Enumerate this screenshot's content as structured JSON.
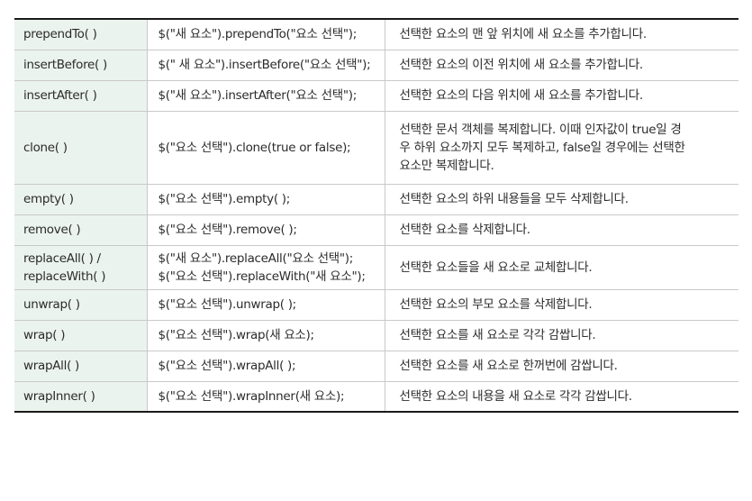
{
  "rows": [
    {
      "method": [
        "prependTo( )"
      ],
      "syntax": [
        "$(\"새 요소\").prependTo(\"요소 선택\");"
      ],
      "desc": [
        "선택한 요소의 맨 앞 위치에 새 요소를 추가합니다."
      ]
    },
    {
      "method": [
        "insertBefore( )"
      ],
      "syntax": [
        "$(\" 새 요소\").insertBefore(\"요소 선택\");"
      ],
      "desc": [
        "선택한 요소의 이전 위치에 새 요소를 추가합니다."
      ]
    },
    {
      "method": [
        "insertAfter( )"
      ],
      "syntax": [
        "$(\"새 요소\").insertAfter(\"요소 선택\");"
      ],
      "desc": [
        "선택한 요소의 다음 위치에 새 요소를 추가합니다."
      ]
    },
    {
      "method": [
        "clone( )"
      ],
      "syntax": [
        "$(\"요소 선택\").clone(true or false);"
      ],
      "desc": [
        "선택한 문서 객체를 복제합니다. 이때 인자값이 true일 경",
        "우 하위 요소까지 모두 복제하고, false일 경우에는 선택한",
        "요소만 복제합니다."
      ]
    },
    {
      "method": [
        "empty( )"
      ],
      "syntax": [
        "$(\"요소 선택\").empty( );"
      ],
      "desc": [
        "선택한 요소의 하위 내용들을 모두 삭제합니다."
      ]
    },
    {
      "method": [
        "remove( )"
      ],
      "syntax": [
        "$(\"요소 선택\").remove( );"
      ],
      "desc": [
        "선택한 요소를 삭제합니다."
      ]
    },
    {
      "method": [
        "replaceAll( ) /",
        "replaceWith( )"
      ],
      "syntax": [
        "$(\"새 요소\").replaceAll(\"요소 선택\");",
        "$(\"요소 선택\").replaceWith(\"새 요소\");"
      ],
      "desc": [
        "선택한 요소들을 새 요소로 교체합니다."
      ]
    },
    {
      "method": [
        "unwrap( )"
      ],
      "syntax": [
        "$(\"요소 선택\").unwrap( );"
      ],
      "desc": [
        "선택한 요소의 부모 요소를 삭제합니다."
      ]
    },
    {
      "method": [
        "wrap( )"
      ],
      "syntax": [
        "$(\"요소 선택\").wrap(새 요소);"
      ],
      "desc": [
        "선택한 요소를 새 요소로 각각 감쌉니다."
      ]
    },
    {
      "method": [
        "wrapAll( )"
      ],
      "syntax": [
        "$(\"요소 선택\").wrapAll( );"
      ],
      "desc": [
        "선택한 요소를 새 요소로 한꺼번에 감쌉니다."
      ]
    },
    {
      "method": [
        "wrapInner( )"
      ],
      "syntax": [
        "$(\"요소 선택\").wrapInner(새 요소);"
      ],
      "desc": [
        "선택한 요소의 내용을 새 요소로 각각 감쌉니다."
      ]
    }
  ]
}
